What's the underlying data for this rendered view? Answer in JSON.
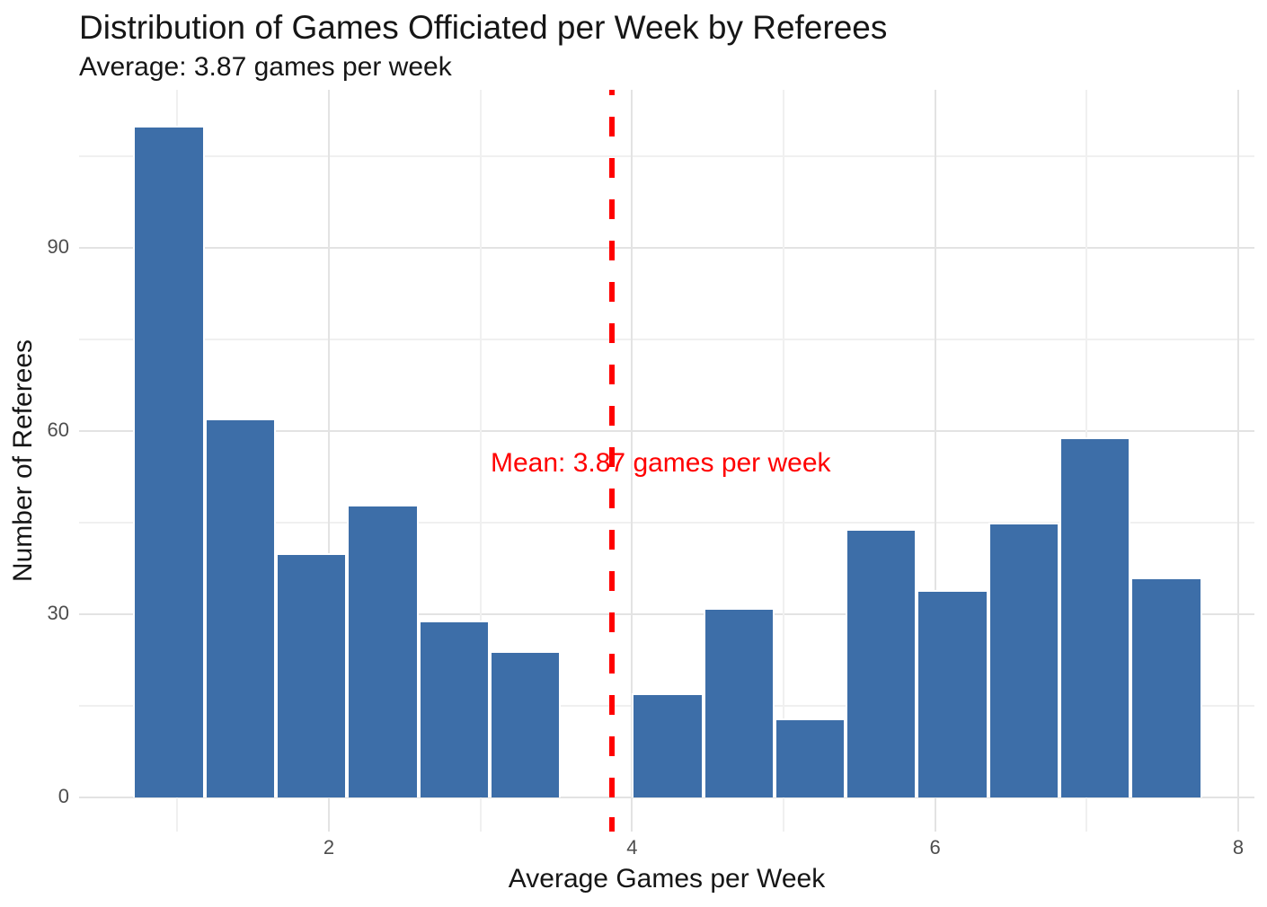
{
  "header": {
    "title": "Distribution of Games Officiated per Week by Referees",
    "subtitle": "Average: 3.87 games per week"
  },
  "chart_data": {
    "type": "bar",
    "variant": "histogram",
    "title": "Distribution of Games Officiated per Week by Referees",
    "subtitle": "Average: 3.87 games per week",
    "xlabel": "Average Games per Week",
    "ylabel": "Number of Referees",
    "bin_start": 0.71,
    "bin_width": 0.47,
    "counts": [
      110,
      62,
      40,
      48,
      29,
      24,
      0,
      17,
      31,
      13,
      44,
      34,
      45,
      59,
      36
    ],
    "bin_centers": [
      0.95,
      1.42,
      1.88,
      2.35,
      2.82,
      3.29,
      3.76,
      4.23,
      4.7,
      5.16,
      5.63,
      6.1,
      6.57,
      7.04,
      7.51
    ],
    "x_major_ticks": [
      2,
      4,
      6,
      8
    ],
    "x_minor_ticks": [
      1,
      3,
      5,
      7
    ],
    "y_major_ticks": [
      0,
      30,
      60,
      90
    ],
    "y_minor_ticks": [
      15,
      45,
      75,
      105
    ],
    "xlim": [
      0.35,
      8.1
    ],
    "ylim": [
      0,
      116
    ],
    "grid": true,
    "legend": false,
    "bar_fill": "#3d6ea8",
    "bar_border": "#ffffff",
    "mean_line": {
      "x": 3.87,
      "label": "Mean: 3.87 games per week",
      "color": "#ff0000",
      "style": "dashed"
    }
  }
}
